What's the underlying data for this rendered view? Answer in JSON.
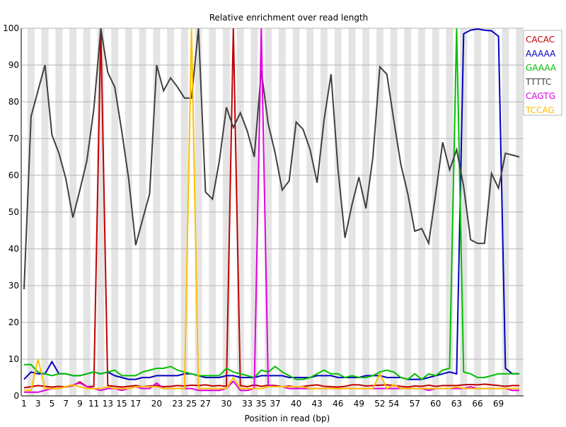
{
  "chart_data": {
    "type": "line",
    "title": "Relative enrichment over read length",
    "xlabel": "Position in read (bp)",
    "ylabel": "",
    "ylim": [
      0,
      100
    ],
    "xlim": [
      1,
      72
    ],
    "yticks": [
      0,
      10,
      20,
      30,
      40,
      50,
      60,
      70,
      80,
      90,
      100
    ],
    "xticks": [
      1,
      3,
      5,
      7,
      9,
      11,
      13,
      15,
      17,
      20,
      23,
      25,
      27,
      30,
      33,
      35,
      37,
      40,
      43,
      46,
      49,
      52,
      54,
      57,
      60,
      63,
      66,
      69
    ],
    "grid": "horizontal",
    "background": "alternating vertical bands",
    "legend_position": "top-right",
    "x": [
      1,
      2,
      3,
      4,
      5,
      6,
      7,
      8,
      9,
      10,
      11,
      12,
      13,
      14,
      15,
      16,
      17,
      18,
      19,
      20,
      21,
      22,
      23,
      24,
      25,
      26,
      27,
      28,
      29,
      30,
      31,
      32,
      33,
      34,
      35,
      36,
      37,
      38,
      39,
      40,
      41,
      42,
      43,
      44,
      45,
      46,
      47,
      48,
      49,
      50,
      51,
      52,
      53,
      54,
      55,
      56,
      57,
      58,
      59,
      60,
      61,
      62,
      63,
      64,
      65,
      66,
      67,
      68,
      69,
      70,
      71,
      72
    ],
    "series": [
      {
        "name": "CACAC",
        "color": "#c00000",
        "values": [
          2.2,
          2.5,
          2.8,
          2.6,
          2.4,
          2.6,
          2.4,
          2.8,
          3.8,
          2.5,
          2.6,
          100,
          2.8,
          2.6,
          2.4,
          2.6,
          2.8,
          2.5,
          2.7,
          2.8,
          2.5,
          2.6,
          2.8,
          2.7,
          2.9,
          2.8,
          3.0,
          2.7,
          2.8,
          2.6,
          100,
          2.8,
          2.5,
          3.0,
          2.6,
          2.9,
          2.8,
          2.5,
          2.7,
          2.4,
          2.6,
          2.8,
          3.0,
          2.6,
          2.5,
          2.4,
          2.6,
          3.0,
          3.0,
          2.7,
          2.8,
          2.9,
          3.0,
          2.8,
          2.6,
          2.4,
          2.7,
          2.6,
          2.9,
          2.6,
          2.8,
          2.8,
          2.8,
          3.0,
          3.1,
          3.0,
          3.2,
          3.0,
          2.8,
          2.6,
          2.8,
          2.8
        ]
      },
      {
        "name": "AAAAA",
        "color": "#0000c0",
        "values": [
          4.5,
          6.5,
          6.0,
          6.0,
          9.3,
          6.0,
          6.0,
          5.5,
          5.5,
          6.0,
          6.5,
          6.0,
          6.5,
          5.5,
          5.0,
          4.5,
          4.5,
          5.0,
          5.0,
          5.5,
          5.5,
          5.5,
          5.5,
          6.0,
          6.0,
          5.5,
          5.0,
          5.0,
          5.0,
          5.5,
          5.5,
          5.0,
          5.0,
          5.0,
          5.5,
          5.5,
          5.5,
          5.5,
          5.0,
          5.0,
          5.0,
          5.0,
          5.5,
          5.5,
          5.5,
          5.0,
          5.0,
          5.0,
          5.0,
          5.5,
          5.5,
          5.5,
          5.0,
          5.0,
          5.0,
          4.5,
          4.5,
          4.5,
          5.0,
          5.5,
          6.0,
          6.5,
          6.0,
          98.5,
          99.5,
          99.8,
          99.5,
          99.3,
          97.8,
          7.5,
          6.0,
          6.0
        ]
      },
      {
        "name": "GAAAA",
        "color": "#00c000",
        "values": [
          8.5,
          8.5,
          6.5,
          6.0,
          5.5,
          6.0,
          6.0,
          5.5,
          5.5,
          6.0,
          6.5,
          6.0,
          6.5,
          7.0,
          5.5,
          5.5,
          5.5,
          6.5,
          7.0,
          7.5,
          7.5,
          8.0,
          7.0,
          6.5,
          6.0,
          5.5,
          5.5,
          5.5,
          5.5,
          7.5,
          6.5,
          6.0,
          5.5,
          5.0,
          7.0,
          6.5,
          8.0,
          6.5,
          5.5,
          4.5,
          4.5,
          5.0,
          6.0,
          7.0,
          6.0,
          6.0,
          5.0,
          5.5,
          5.0,
          5.0,
          5.5,
          6.5,
          7.0,
          6.5,
          5.0,
          4.5,
          6.0,
          4.5,
          6.0,
          5.5,
          7.0,
          7.5,
          100,
          6.5,
          6.0,
          5.0,
          5.0,
          5.5,
          6.0,
          6.0,
          6.0,
          6.0
        ]
      },
      {
        "name": "TTTTC",
        "color": "#404040",
        "values": [
          29,
          76,
          83,
          90,
          71,
          66,
          59,
          48.5,
          56,
          64,
          78,
          100,
          88,
          84,
          72,
          59,
          41,
          48,
          55,
          90,
          83,
          86.5,
          84,
          81,
          81,
          100,
          55.5,
          53.5,
          64,
          78.5,
          73,
          77,
          72,
          65,
          88.5,
          74,
          66,
          56,
          58.5,
          74.5,
          72.5,
          67,
          58,
          75,
          87.5,
          61.5,
          43,
          52,
          59.5,
          51,
          65,
          89.5,
          87.5,
          75,
          63,
          55,
          44.8,
          45.5,
          41.5,
          55,
          69,
          61.5,
          67,
          57,
          42.5,
          41.5,
          41.5,
          60.5,
          56.5,
          66,
          65.5,
          65
        ]
      },
      {
        "name": "CAGTG",
        "color": "#e000e0",
        "values": [
          1.0,
          1.0,
          1.0,
          1.5,
          2.0,
          2.0,
          2.5,
          3.0,
          3.5,
          2.5,
          2.0,
          1.5,
          2.0,
          2.0,
          1.5,
          2.0,
          2.5,
          2.0,
          2.0,
          3.5,
          2.0,
          2.0,
          2.0,
          2.0,
          2.0,
          1.5,
          1.5,
          1.5,
          1.5,
          2.0,
          4.0,
          1.5,
          1.5,
          2.0,
          100,
          3.0,
          2.5,
          2.5,
          2.0,
          2.0,
          2.0,
          2.0,
          2.0,
          2.0,
          2.0,
          2.0,
          2.0,
          2.0,
          2.0,
          2.0,
          2.0,
          2.0,
          2.0,
          2.0,
          2.0,
          2.0,
          2.0,
          2.0,
          1.5,
          2.0,
          2.0,
          2.0,
          2.0,
          2.0,
          2.5,
          2.0,
          2.0,
          2.0,
          2.0,
          2.0,
          1.5,
          1.5
        ]
      },
      {
        "name": "TCCAG",
        "color": "#ffc000",
        "values": [
          1.5,
          1.5,
          10,
          2.0,
          2.0,
          2.0,
          2.5,
          3.0,
          2.5,
          2.0,
          2.0,
          2.0,
          2.5,
          2.0,
          2.0,
          2.0,
          2.5,
          2.5,
          2.5,
          2.5,
          2.0,
          2.0,
          2.0,
          2.0,
          100,
          2.0,
          2.0,
          2.0,
          2.0,
          2.0,
          5.0,
          2.0,
          2.0,
          2.0,
          2.0,
          2.5,
          2.5,
          2.5,
          2.5,
          2.5,
          2.5,
          2.0,
          2.0,
          2.0,
          2.0,
          2.0,
          2.0,
          2.0,
          2.0,
          2.0,
          2.0,
          6.0,
          2.0,
          3.0,
          2.0,
          2.0,
          2.0,
          2.0,
          2.0,
          2.0,
          2.0,
          2.0,
          2.5,
          2.0,
          2.0,
          2.0,
          2.0,
          2.0,
          2.0,
          2.0,
          2.0,
          2.0
        ]
      }
    ]
  }
}
